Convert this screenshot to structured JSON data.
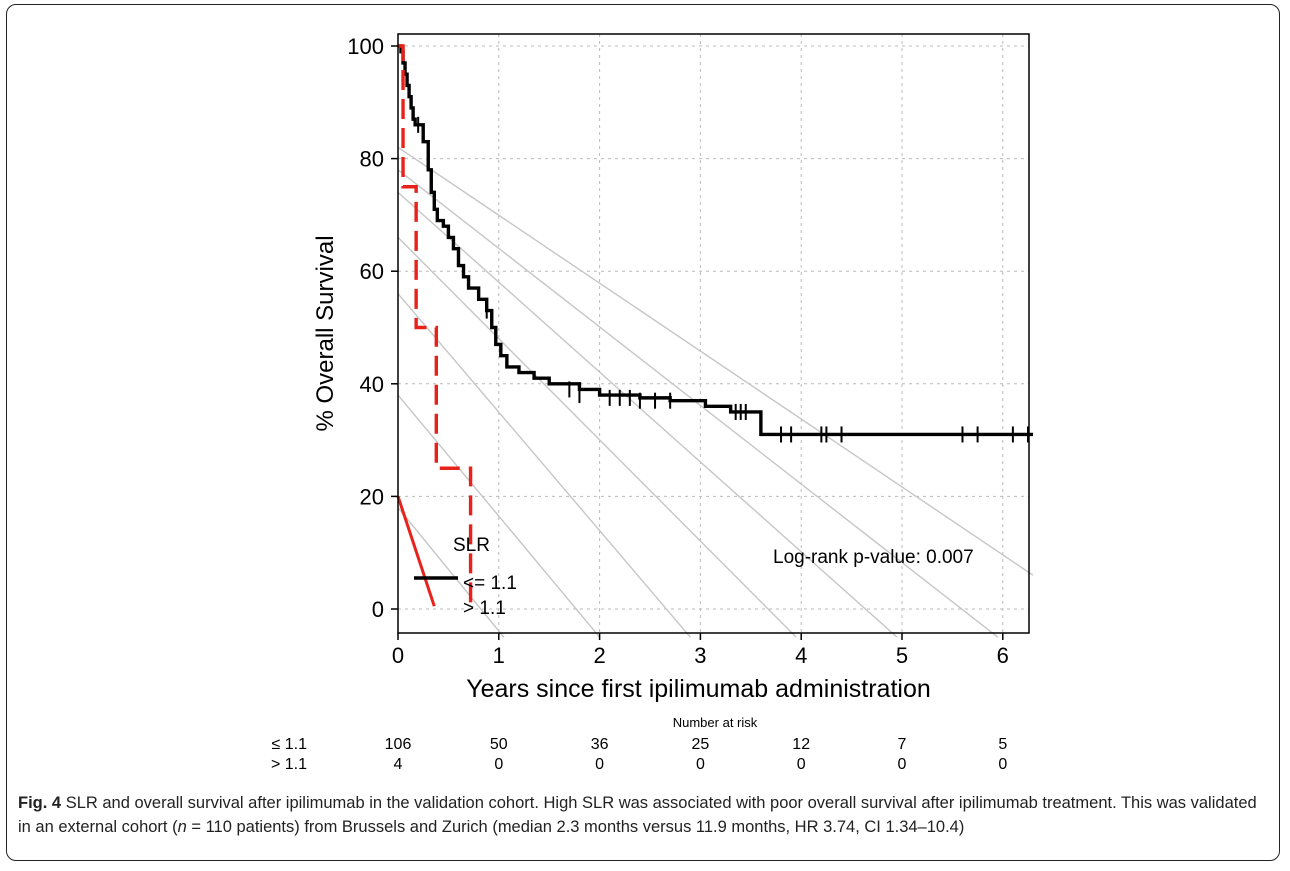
{
  "chart_data": {
    "type": "line",
    "subtype": "kaplan-meier",
    "xlabel": "Years since first ipilimumab administration",
    "ylabel": "% Overall Survival",
    "xlim": [
      0,
      6.3
    ],
    "ylim": [
      0,
      100
    ],
    "x_ticks": [
      "0",
      "1",
      "2",
      "3",
      "4",
      "5",
      "6"
    ],
    "y_ticks": [
      "0",
      "20",
      "40",
      "60",
      "80",
      "100"
    ],
    "grid": true,
    "annotation": "Log-rank p-value: 0.007",
    "legend": {
      "title": "SLR",
      "placement": "bottom-left",
      "entries": [
        "<= 1.1",
        "> 1.1"
      ]
    },
    "series": [
      {
        "name": "<= 1.1",
        "color": "#000000",
        "style": "solid",
        "points": [
          [
            0,
            100
          ],
          [
            0.03,
            99
          ],
          [
            0.05,
            97
          ],
          [
            0.07,
            95
          ],
          [
            0.09,
            93
          ],
          [
            0.11,
            91
          ],
          [
            0.13,
            89
          ],
          [
            0.15,
            87
          ],
          [
            0.17,
            86
          ],
          [
            0.25,
            83
          ],
          [
            0.3,
            78
          ],
          [
            0.33,
            74
          ],
          [
            0.36,
            71
          ],
          [
            0.39,
            69
          ],
          [
            0.45,
            68
          ],
          [
            0.5,
            66
          ],
          [
            0.55,
            64
          ],
          [
            0.6,
            61
          ],
          [
            0.65,
            59
          ],
          [
            0.7,
            57
          ],
          [
            0.8,
            55
          ],
          [
            0.88,
            53
          ],
          [
            0.93,
            50
          ],
          [
            0.97,
            47
          ],
          [
            1.02,
            45
          ],
          [
            1.08,
            43
          ],
          [
            1.2,
            42
          ],
          [
            1.35,
            41
          ],
          [
            1.5,
            40
          ],
          [
            1.8,
            39
          ],
          [
            2.0,
            38
          ],
          [
            2.4,
            37.5
          ],
          [
            2.7,
            37
          ],
          [
            3.05,
            36
          ],
          [
            3.3,
            35
          ],
          [
            3.6,
            34
          ],
          [
            3.6,
            31
          ],
          [
            6.3,
            31
          ]
        ],
        "censored": [
          [
            0.2,
            86
          ],
          [
            0.88,
            53
          ],
          [
            1.7,
            39
          ],
          [
            1.8,
            38
          ],
          [
            2.1,
            37.5
          ],
          [
            2.2,
            37.5
          ],
          [
            2.3,
            37.5
          ],
          [
            2.4,
            37
          ],
          [
            2.55,
            37
          ],
          [
            2.7,
            37
          ],
          [
            3.35,
            35
          ],
          [
            3.4,
            35
          ],
          [
            3.45,
            35
          ],
          [
            3.8,
            31
          ],
          [
            3.9,
            31
          ],
          [
            4.2,
            31
          ],
          [
            4.25,
            31
          ],
          [
            4.4,
            31
          ],
          [
            5.6,
            31
          ],
          [
            5.75,
            31
          ],
          [
            6.1,
            31
          ],
          [
            6.25,
            31
          ]
        ]
      },
      {
        "name": "> 1.1",
        "color": "#e8221b",
        "style": "dashed",
        "points": [
          [
            0,
            100
          ],
          [
            0.05,
            75
          ],
          [
            0.18,
            75
          ],
          [
            0.18,
            50
          ],
          [
            0.38,
            50
          ],
          [
            0.38,
            25
          ],
          [
            0.72,
            25
          ],
          [
            0.72,
            0
          ]
        ]
      }
    ],
    "risk_table": {
      "title": "Number at risk",
      "rows": [
        {
          "label": "≤ 1.1",
          "values": [
            "106",
            "50",
            "36",
            "25",
            "12",
            "7",
            "5"
          ]
        },
        {
          "label": "> 1.1",
          "values": [
            "4",
            "0",
            "0",
            "0",
            "0",
            "0",
            "0"
          ]
        }
      ]
    }
  },
  "caption": {
    "label": "Fig. 4",
    "text": "SLR and overall survival after ipilimumab in the validation cohort. High SLR was associated with poor overall survival after ipilimumab treatment. This was validated in an external cohort (",
    "n_var": "n",
    "text2": " = 110 patients) from Brussels and Zurich (median 2.3 months versus 11.9 months, HR 3.74, CI 1.34–10.4)"
  }
}
